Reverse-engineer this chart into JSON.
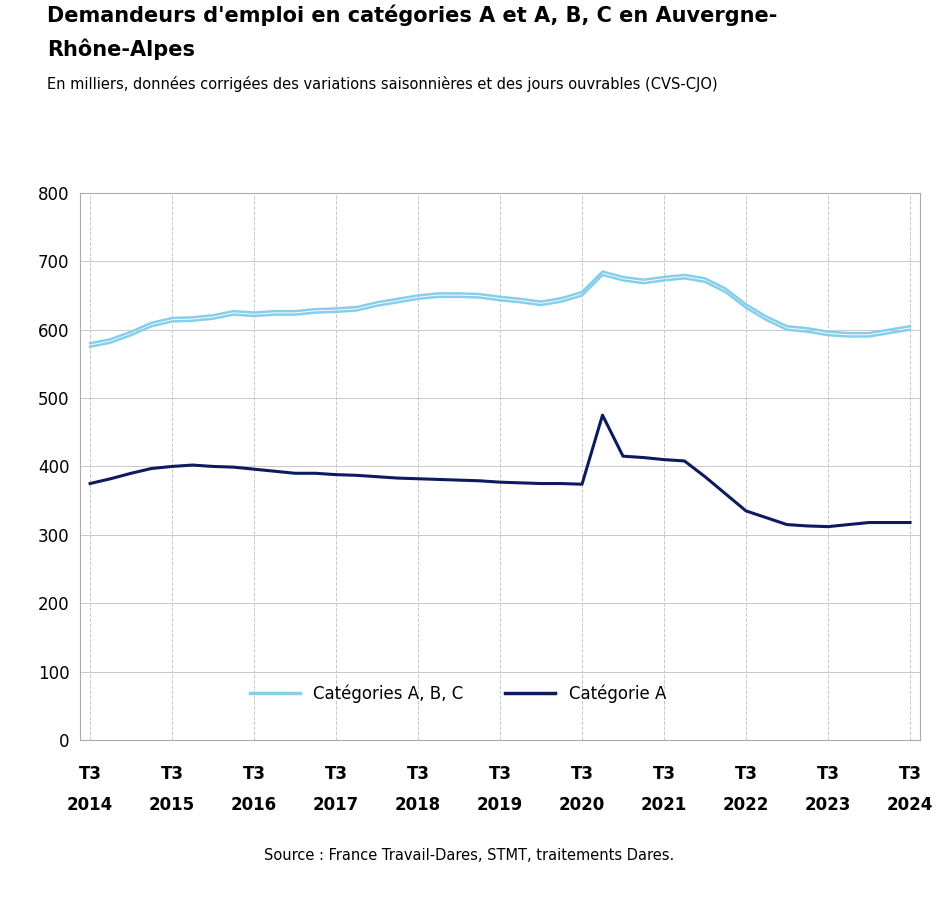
{
  "title_line1": "Demandeurs d'emploi en catégories A et A, B, C en Auvergne-",
  "title_line2": "Rhône-Alpes",
  "subtitle": "En milliers, données corrigées des variations saisonnières et des jours ouvrables (CVS-CJO)",
  "source": "Source : France Travail-Dares, STMT, traitements Dares.",
  "ylim": [
    0,
    800
  ],
  "yticks": [
    0,
    100,
    200,
    300,
    400,
    500,
    600,
    700,
    800
  ],
  "x_labels_top": [
    "T3",
    "T3",
    "T3",
    "T3",
    "T3",
    "T3",
    "T3",
    "T3",
    "T3",
    "T3",
    "T3"
  ],
  "x_labels_bot": [
    "2014",
    "2015",
    "2016",
    "2017",
    "2018",
    "2019",
    "2020",
    "2021",
    "2022",
    "2023",
    "2024"
  ],
  "x_positions": [
    0,
    4,
    8,
    12,
    16,
    20,
    24,
    28,
    32,
    36,
    40
  ],
  "legend_abc": "Catégories A, B, C",
  "legend_a": "Catégorie A",
  "color_abc": "#87CEEB",
  "color_a": "#0d1b5e",
  "cat_abc": [
    575,
    581,
    592,
    605,
    612,
    613,
    616,
    622,
    620,
    622,
    622,
    625,
    626,
    628,
    635,
    640,
    645,
    648,
    648,
    647,
    643,
    640,
    636,
    641,
    650,
    680,
    672,
    668,
    672,
    675,
    670,
    655,
    632,
    614,
    600,
    597,
    592,
    590,
    590,
    595,
    600
  ],
  "cat_abc_upper": [
    580,
    586,
    597,
    610,
    617,
    618,
    621,
    627,
    625,
    627,
    627,
    630,
    631,
    633,
    640,
    645,
    650,
    653,
    653,
    652,
    648,
    645,
    641,
    646,
    655,
    685,
    677,
    673,
    677,
    680,
    675,
    660,
    637,
    619,
    605,
    602,
    597,
    595,
    595,
    600,
    605
  ],
  "cat_a": [
    375,
    382,
    390,
    397,
    400,
    402,
    400,
    399,
    396,
    393,
    390,
    390,
    388,
    387,
    385,
    383,
    382,
    381,
    380,
    379,
    377,
    376,
    375,
    375,
    374,
    475,
    415,
    413,
    410,
    408,
    385,
    360,
    335,
    325,
    315,
    313,
    312,
    315,
    318,
    318,
    318
  ]
}
